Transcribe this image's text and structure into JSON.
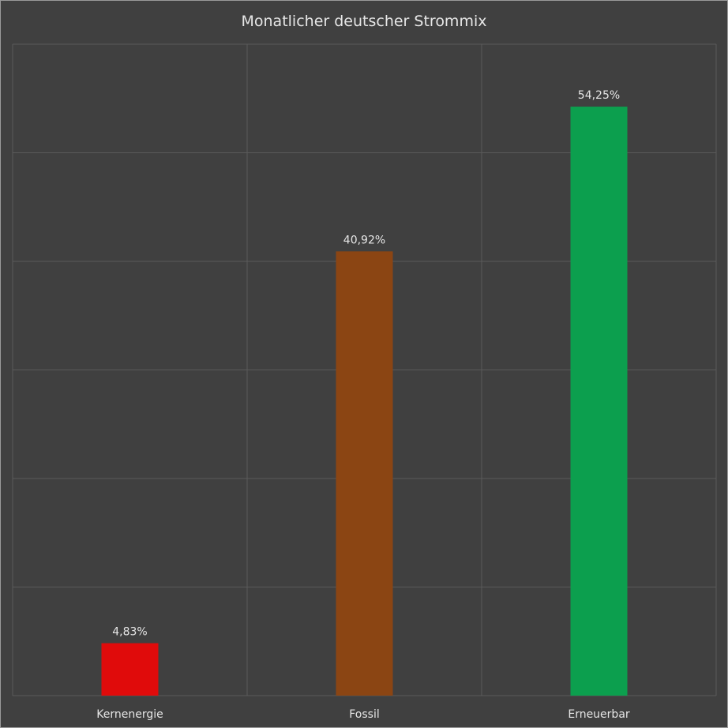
{
  "chart_data": {
    "type": "bar",
    "title": "Monatlicher deutscher Strommix",
    "categories": [
      "Kernenergie",
      "Fossil",
      "Erneuerbar"
    ],
    "values": [
      4.83,
      40.92,
      54.25
    ],
    "data_labels": [
      "4,83%",
      "40,92%",
      "54,25%"
    ],
    "colors": [
      "#e00b0b",
      "#8b4513",
      "#0c9f4e"
    ],
    "ylim": [
      0,
      60
    ],
    "grid": true,
    "legend": "none",
    "xlabel": "",
    "ylabel": ""
  }
}
